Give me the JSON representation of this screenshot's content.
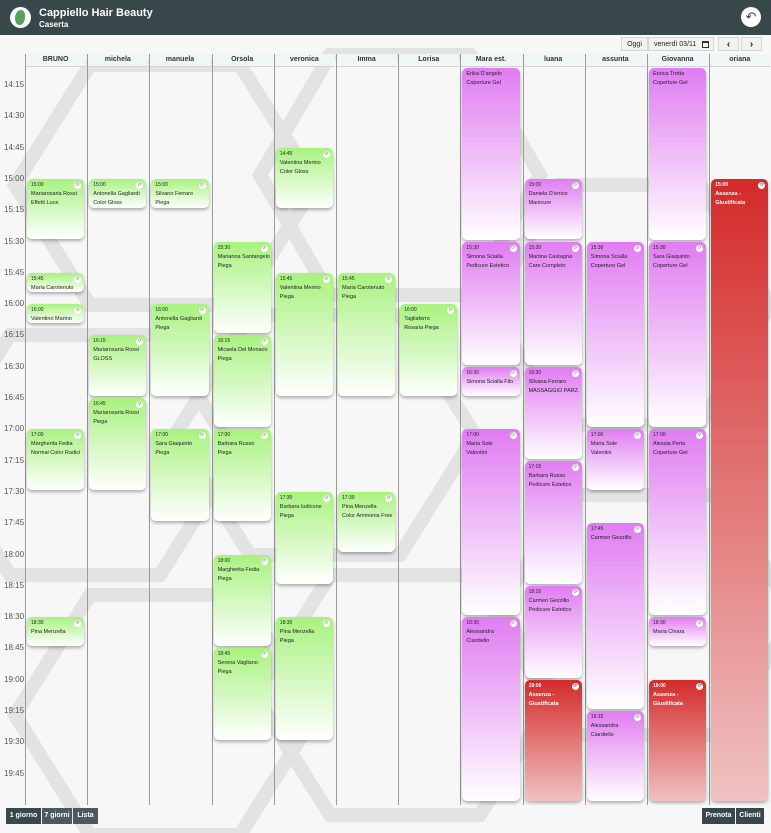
{
  "app": {
    "title": "Cappiello Hair Beauty",
    "subtitle": "Caserta"
  },
  "toolbar": {
    "today": "Oggi",
    "date": "venerdì 03/11",
    "calendar_icon": "calendar-icon",
    "prev": "‹",
    "next": "›"
  },
  "staff": [
    "BRUNO",
    "michela",
    "manuela",
    "Orsola",
    "veronica",
    "Imma",
    "Lorisa",
    "Mara est.",
    "luana",
    "assunta",
    "Giovanna",
    "oriana"
  ],
  "times": [
    "14:15",
    "14:30",
    "14:45",
    "15:00",
    "15:15",
    "15:30",
    "15:45",
    "16:00",
    "16:15",
    "16:30",
    "16:45",
    "17:00",
    "17:15",
    "17:30",
    "17:45",
    "18:00",
    "18:15",
    "18:30",
    "18:45",
    "19:00",
    "19:15",
    "19:30",
    "19:45"
  ],
  "events": [
    {
      "col": 0,
      "start": "15:00",
      "end": "15:30",
      "time": "15:00",
      "name": "Mariarosaria Rossi",
      "service": "Effetti Luce",
      "color": "green"
    },
    {
      "col": 0,
      "start": "15:45",
      "end": "15:55",
      "time": "15:45",
      "name": "Maria Carotenuto",
      "service": "",
      "color": "green"
    },
    {
      "col": 0,
      "start": "16:00",
      "end": "16:10",
      "time": "16:00",
      "name": "Valentino Marino",
      "service": "",
      "color": "green"
    },
    {
      "col": 0,
      "start": "17:00",
      "end": "17:30",
      "time": "17:00",
      "name": "Margherita Fedia",
      "service": "Normal Color Radici",
      "color": "green"
    },
    {
      "col": 0,
      "start": "18:30",
      "end": "18:45",
      "time": "18:30",
      "name": "Pina Menzella",
      "service": "",
      "color": "green"
    },
    {
      "col": 1,
      "start": "15:00",
      "end": "15:15",
      "time": "15:00",
      "name": "Antonella Gagliardi",
      "service": "Color Gloss",
      "color": "green"
    },
    {
      "col": 1,
      "start": "16:15",
      "end": "16:45",
      "time": "16:15",
      "name": "Mariarosaria Rossi",
      "service": "GLOSS",
      "color": "green"
    },
    {
      "col": 1,
      "start": "16:45",
      "end": "17:30",
      "time": "16:45",
      "name": "Mariarosaria Rossi",
      "service": "Piega",
      "color": "green"
    },
    {
      "col": 2,
      "start": "15:00",
      "end": "15:15",
      "time": "15:00",
      "name": "Silvano Ferraro",
      "service": "Piega",
      "color": "green"
    },
    {
      "col": 2,
      "start": "16:00",
      "end": "16:45",
      "time": "16:00",
      "name": "Antonella Gagliardi",
      "service": "Piega",
      "color": "green"
    },
    {
      "col": 2,
      "start": "17:00",
      "end": "17:45",
      "time": "17:00",
      "name": "Sara Giaquinto",
      "service": "Piega",
      "color": "green"
    },
    {
      "col": 3,
      "start": "15:30",
      "end": "16:15",
      "time": "15:30",
      "name": "Marianna Santangelo",
      "service": "Piega",
      "color": "green"
    },
    {
      "col": 3,
      "start": "16:15",
      "end": "17:00",
      "time": "16:15",
      "name": "Micaela Del Monaco",
      "service": "Piega",
      "color": "green"
    },
    {
      "col": 3,
      "start": "17:00",
      "end": "17:45",
      "time": "17:00",
      "name": "Barbara Russo",
      "service": "Piega",
      "color": "green"
    },
    {
      "col": 3,
      "start": "18:00",
      "end": "18:45",
      "time": "18:00",
      "name": "Margherita Fedia",
      "service": "Piega",
      "color": "green"
    },
    {
      "col": 3,
      "start": "18:45",
      "end": "19:30",
      "time": "18:45",
      "name": "Serena Vagliano",
      "service": "Piega",
      "color": "green"
    },
    {
      "col": 4,
      "start": "14:45",
      "end": "15:15",
      "time": "14:45",
      "name": "Valentina Merino",
      "service": "Color Gloss",
      "color": "green"
    },
    {
      "col": 4,
      "start": "15:45",
      "end": "16:45",
      "time": "15:45",
      "name": "Valentina Merino",
      "service": "Piega",
      "color": "green"
    },
    {
      "col": 4,
      "start": "17:30",
      "end": "18:15",
      "time": "17:30",
      "name": "Barbara Iudicone",
      "service": "Piega",
      "color": "green"
    },
    {
      "col": 4,
      "start": "18:30",
      "end": "19:30",
      "time": "18:30",
      "name": "Pina Menzella",
      "service": "Piega",
      "color": "green"
    },
    {
      "col": 5,
      "start": "15:45",
      "end": "16:45",
      "time": "15:45",
      "name": "Maria Carotenuto",
      "service": "Piega",
      "color": "green"
    },
    {
      "col": 5,
      "start": "17:30",
      "end": "18:00",
      "time": "17:30",
      "name": "Pina Menzella",
      "service": "Color Ammonia Free",
      "color": "green"
    },
    {
      "col": 6,
      "start": "16:00",
      "end": "16:45",
      "time": "16:00",
      "name": "Tagliaferro",
      "service": "Rosaria Piega",
      "color": "green"
    },
    {
      "col": 7,
      "start": "14:00",
      "end": "15:30",
      "time": "",
      "name": "Erika D'angelo",
      "service": "Coperture Gel",
      "color": "purple"
    },
    {
      "col": 7,
      "start": "15:30",
      "end": "16:30",
      "time": "15:30",
      "name": "Simona Scialla",
      "service": "Pedicure Estetico",
      "color": "purple"
    },
    {
      "col": 7,
      "start": "16:30",
      "end": "16:45",
      "time": "16:30",
      "name": "Simona Scialla Filo",
      "service": "",
      "color": "purple"
    },
    {
      "col": 7,
      "start": "17:00",
      "end": "18:30",
      "time": "17:00",
      "name": "Maria Sole",
      "service": "Valentini",
      "color": "purple"
    },
    {
      "col": 7,
      "start": "18:30",
      "end": "20:00",
      "time": "18:30",
      "name": "Alessandra",
      "service": "Ciardiello",
      "color": "purple"
    },
    {
      "col": 8,
      "start": "15:00",
      "end": "15:30",
      "time": "15:00",
      "name": "Daniela D'errico",
      "service": "Manicure",
      "color": "purple"
    },
    {
      "col": 8,
      "start": "15:30",
      "end": "16:30",
      "time": "15:30",
      "name": "Martina Castagna",
      "service": "Care Completo",
      "color": "purple"
    },
    {
      "col": 8,
      "start": "16:30",
      "end": "17:15",
      "time": "16:30",
      "name": "Silvana Ferraro",
      "service": "MASSAGGIO PARZ.",
      "color": "purple"
    },
    {
      "col": 8,
      "start": "17:15",
      "end": "18:15",
      "time": "17:15",
      "name": "Barbara Russo",
      "service": "Pedicure Estetico",
      "color": "purple"
    },
    {
      "col": 8,
      "start": "18:15",
      "end": "19:00",
      "time": "18:15",
      "name": "Carmen Gezzillo",
      "service": "Pedicure Estetico",
      "color": "purple"
    },
    {
      "col": 8,
      "start": "19:00",
      "end": "20:00",
      "time": "19:00",
      "name": "Assenza -",
      "service": "Giustificata",
      "color": "red"
    },
    {
      "col": 9,
      "start": "15:30",
      "end": "17:00",
      "time": "15:30",
      "name": "Simona Scialla",
      "service": "Coperture Gel",
      "color": "purple"
    },
    {
      "col": 9,
      "start": "17:00",
      "end": "17:30",
      "time": "17:00",
      "name": "Maria Sole",
      "service": "Valentini",
      "color": "purple"
    },
    {
      "col": 9,
      "start": "17:45",
      "end": "19:15",
      "time": "17:45",
      "name": "Carmen Gezzillo",
      "service": "",
      "color": "purple"
    },
    {
      "col": 9,
      "start": "19:15",
      "end": "20:00",
      "time": "19:15",
      "name": "Alessandra",
      "service": "Ciardiello",
      "color": "purple"
    },
    {
      "col": 10,
      "start": "14:00",
      "end": "15:30",
      "time": "",
      "name": "Enrica Trotta",
      "service": "Coperture Gel",
      "color": "purple"
    },
    {
      "col": 10,
      "start": "15:30",
      "end": "17:00",
      "time": "15:30",
      "name": "Sara Giaquinto",
      "service": "Coperture Gel",
      "color": "purple"
    },
    {
      "col": 10,
      "start": "17:00",
      "end": "18:30",
      "time": "17:00",
      "name": "Alessia Peria",
      "service": "Coperture Gel",
      "color": "purple"
    },
    {
      "col": 10,
      "start": "18:30",
      "end": "18:45",
      "time": "18:30",
      "name": "Maria Chiara",
      "service": "",
      "color": "purple"
    },
    {
      "col": 10,
      "start": "19:00",
      "end": "20:00",
      "time": "19:00",
      "name": "Assenza -",
      "service": "Giustificata",
      "color": "red"
    },
    {
      "col": 11,
      "start": "15:00",
      "end": "20:00",
      "time": "15:00",
      "name": "Assenza -",
      "service": "Giustificata",
      "color": "red"
    }
  ],
  "footer": {
    "view_day": "1 giorno",
    "view_week": "7 giorni",
    "view_list": "Lista",
    "book": "Prenota",
    "clients": "Clienti"
  },
  "colors": {
    "header": "#37474a",
    "green": "#a8f27f",
    "purple": "#e07cf2",
    "red": "#d42a2a"
  }
}
